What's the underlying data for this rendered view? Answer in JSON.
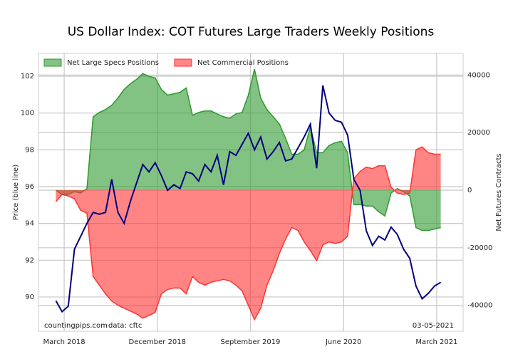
{
  "chart_data": {
    "type": "line",
    "title": "US Dollar Index: COT Futures Large Traders Weekly Positions",
    "y_label": "Price (blue line)",
    "y2_label": "Net Futures Contracts",
    "annotations": [
      "countingpips.com",
      "data: cftc",
      "03-05-2021"
    ],
    "legend": "upper left",
    "grid": true,
    "xlim": [
      2017.96,
      2021.38
    ],
    "xticks": [
      {
        "value": 2018.167,
        "label": "March 2018"
      },
      {
        "value": 2018.917,
        "label": "December 2018"
      },
      {
        "value": 2019.667,
        "label": "September 2019"
      },
      {
        "value": 2020.417,
        "label": "June 2020"
      },
      {
        "value": 2021.167,
        "label": "March 2021"
      }
    ],
    "ylim": [
      88.14,
      103.24
    ],
    "yticks": [
      90,
      92,
      94,
      96,
      98,
      100,
      102
    ],
    "y2lim": [
      -49000,
      47500
    ],
    "y2ticks": [
      -40000,
      -20000,
      0,
      20000,
      40000
    ],
    "x": [
      2018.1,
      2018.15,
      2018.2,
      2018.25,
      2018.3,
      2018.35,
      2018.4,
      2018.45,
      2018.5,
      2018.55,
      2018.6,
      2018.65,
      2018.7,
      2018.75,
      2018.8,
      2018.85,
      2018.9,
      2018.95,
      2019.0,
      2019.05,
      2019.1,
      2019.15,
      2019.2,
      2019.25,
      2019.3,
      2019.35,
      2019.4,
      2019.45,
      2019.5,
      2019.55,
      2019.6,
      2019.65,
      2019.7,
      2019.75,
      2019.8,
      2019.85,
      2019.9,
      2019.95,
      2020.0,
      2020.05,
      2020.1,
      2020.15,
      2020.2,
      2020.25,
      2020.3,
      2020.35,
      2020.4,
      2020.45,
      2020.5,
      2020.55,
      2020.6,
      2020.65,
      2020.7,
      2020.75,
      2020.8,
      2020.85,
      2020.9,
      2020.95,
      2021.0,
      2021.05,
      2021.1,
      2021.15,
      2021.2
    ],
    "series": [
      {
        "name": "Net Large Specs Positions",
        "color": "#2e9a2e",
        "fill": true,
        "axis": "y2",
        "values": [
          0,
          -1500,
          -1500,
          -500,
          -1000,
          500,
          25500,
          27000,
          28000,
          29500,
          32000,
          35000,
          37000,
          38500,
          40500,
          39500,
          39000,
          35000,
          33000,
          33500,
          34000,
          35500,
          26000,
          27000,
          27500,
          27500,
          26500,
          25500,
          25000,
          26500,
          27000,
          33000,
          42000,
          32000,
          28000,
          25500,
          23000,
          18000,
          12500,
          12500,
          14000,
          22000,
          13000,
          13000,
          15500,
          16500,
          17000,
          13000,
          -5000,
          -5000,
          -5500,
          -5500,
          -7500,
          -9000,
          -1000,
          500,
          -500,
          -2000,
          -13000,
          -14000,
          -14000,
          -13500,
          -13000
        ]
      },
      {
        "name": "Net Commercial Positions",
        "color": "#ff3333",
        "fill": true,
        "axis": "y2",
        "values": [
          -4000,
          -1500,
          -2000,
          -3000,
          -7000,
          -8000,
          -30000,
          -33000,
          -36000,
          -38500,
          -40000,
          -41000,
          -42000,
          -43000,
          -44500,
          -43500,
          -42500,
          -36000,
          -34500,
          -34000,
          -34000,
          -36000,
          -30000,
          -32000,
          -33000,
          -32000,
          -31500,
          -31000,
          -31500,
          -33000,
          -35000,
          -40000,
          -45000,
          -41000,
          -33000,
          -28000,
          -22000,
          -17000,
          -13000,
          -14000,
          -18000,
          -21000,
          -24500,
          -19000,
          -18000,
          -18500,
          -18000,
          -16000,
          4000,
          6500,
          8000,
          7500,
          8500,
          8500,
          1000,
          -1000,
          -1500,
          -1000,
          14000,
          15000,
          13000,
          12500,
          12500
        ]
      },
      {
        "color": "#000080",
        "fill": false,
        "values": [
          89.8,
          89.2,
          89.5,
          92.6,
          93.3,
          94,
          94.6,
          94.5,
          94.6,
          96.4,
          94.6,
          94,
          95.2,
          96.2,
          97.2,
          96.8,
          97.3,
          96.6,
          95.8,
          96.1,
          95.9,
          96.8,
          96.7,
          96.3,
          97.2,
          96.8,
          97.7,
          96.1,
          97.9,
          97.7,
          98.3,
          98.9,
          98.0,
          98.7,
          97.5,
          97.9,
          98.4,
          97.4,
          97.5,
          98.1,
          98.7,
          99.4,
          97,
          101.5,
          100,
          99.6,
          99.5,
          98.8,
          96.4,
          95.8,
          93.6,
          92.8,
          93.3,
          93.1,
          93.8,
          93.4,
          92.6,
          92.1,
          90.6,
          89.9,
          90.2,
          90.6,
          90.8
        ]
      }
    ]
  }
}
